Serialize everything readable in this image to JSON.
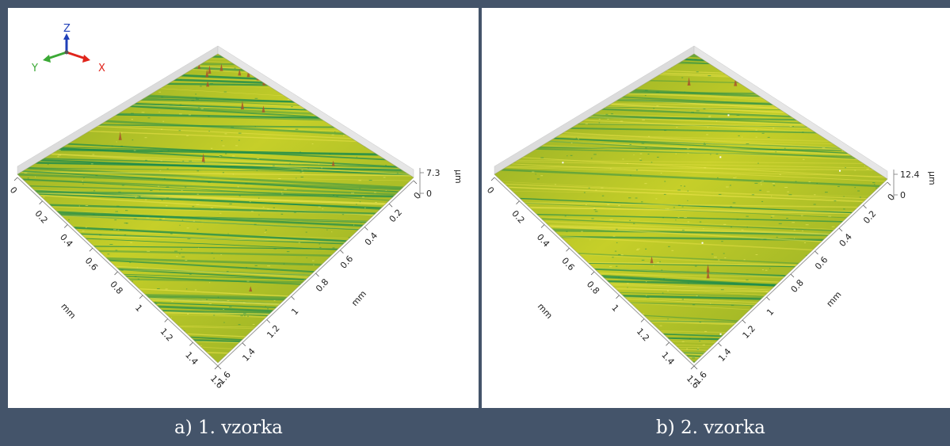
{
  "colors": {
    "frame": "#44546a",
    "surface_light": "#c6cf29",
    "surface_mid": "#8aa825",
    "surface_dark": "#17894d",
    "peak_red": "#a8552a",
    "axis_x": "#e0241b",
    "axis_y": "#3ba935",
    "axis_z": "#1f3fb8"
  },
  "triad": {
    "z": "Z",
    "y": "Y",
    "x": "X"
  },
  "panels": [
    {
      "caption": "a) 1. vzorka",
      "z_max": "7.3",
      "z_min": "0",
      "z_unit": "µm",
      "left_axis_ticks": [
        "0",
        "0.2",
        "0.4",
        "0.6",
        "0.8",
        "1",
        "1.2",
        "1.4",
        "1.6"
      ],
      "right_axis_ticks": [
        "0",
        "0.2",
        "0.4",
        "0.6",
        "0.8",
        "1",
        "1.2",
        "1.4",
        "1.6"
      ],
      "left_axis_unit": "mm",
      "right_axis_unit": "mm"
    },
    {
      "caption": "b) 2. vzorka",
      "z_max": "12.4",
      "z_min": "0",
      "z_unit": "µm",
      "left_axis_ticks": [
        "0",
        "0.2",
        "0.4",
        "0.6",
        "0.8",
        "1",
        "1.2",
        "1.4",
        "1.6"
      ],
      "right_axis_ticks": [
        "0",
        "0.2",
        "0.4",
        "0.6",
        "0.8",
        "1",
        "1.2",
        "1.4",
        "1.6"
      ],
      "left_axis_unit": "mm",
      "right_axis_unit": "mm"
    }
  ]
}
